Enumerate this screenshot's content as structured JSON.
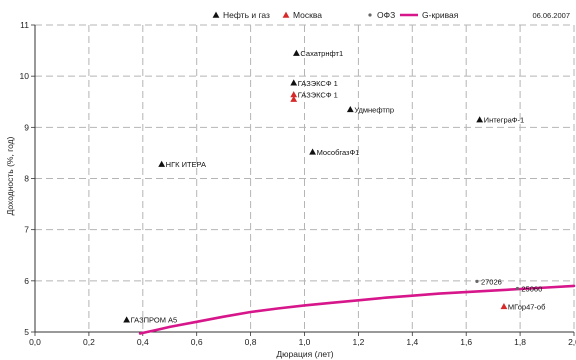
{
  "date_stamp": "06.06.2007",
  "chart_data": {
    "type": "scatter",
    "xlabel": "Дюрация (лет)",
    "ylabel": "Доходность (%, год)",
    "xlim": [
      0,
      2
    ],
    "ylim": [
      5,
      11
    ],
    "x_ticks": [
      "0,0",
      "0,2",
      "0,4",
      "0,6",
      "0,8",
      "1,0",
      "1,2",
      "1,4",
      "1,6",
      "1,8",
      "2,0"
    ],
    "y_ticks": [
      "5",
      "6",
      "7",
      "8",
      "9",
      "10",
      "11"
    ],
    "grid": true,
    "legend_position": "top",
    "legend": [
      {
        "label": "Нефть и газ",
        "marker": "triangle",
        "color": "#111111"
      },
      {
        "label": "Москва",
        "marker": "triangle",
        "color": "#d62a2a"
      },
      {
        "label": "ОФЗ",
        "marker": "dot",
        "color": "#666666"
      },
      {
        "label": "G-кривая",
        "marker": "line",
        "color": "#d6168a"
      }
    ],
    "series": [
      {
        "name": "Нефть и газ",
        "marker": "triangle",
        "color": "#111111",
        "points": [
          {
            "x": 0.97,
            "y": 10.45,
            "label": "Сахатрнфт1"
          },
          {
            "x": 0.96,
            "y": 9.87,
            "label": "ГАЗЭКСФ 1"
          },
          {
            "x": 1.17,
            "y": 9.35,
            "label": "Удмнефтпр"
          },
          {
            "x": 1.65,
            "y": 9.15,
            "label": "ИнтеграФ-1"
          },
          {
            "x": 1.03,
            "y": 8.52,
            "label": "МособгазФ1"
          },
          {
            "x": 0.47,
            "y": 8.28,
            "label": "НГК ИТЕРА"
          },
          {
            "x": 0.34,
            "y": 5.24,
            "label": "ГАЗПРОМ А5"
          }
        ]
      },
      {
        "name": "Москва",
        "marker": "triangle",
        "color": "#d62a2a",
        "points": [
          {
            "x": 0.96,
            "y": 9.64,
            "label": "ГАЗЭКСФ 1"
          },
          {
            "x": 0.96,
            "y": 9.55,
            "label": ""
          },
          {
            "x": 1.74,
            "y": 5.5,
            "label": "МГор47-об"
          }
        ]
      },
      {
        "name": "ОФЗ",
        "marker": "dot",
        "color": "#666666",
        "points": [
          {
            "x": 1.64,
            "y": 5.99,
            "label": "27026"
          },
          {
            "x": 1.79,
            "y": 5.85,
            "label": "25060"
          }
        ]
      },
      {
        "name": "G-кривая",
        "type": "line",
        "color": "#d6168a",
        "x": [
          0.39,
          0.45,
          0.5,
          0.6,
          0.7,
          0.8,
          0.9,
          1.0,
          1.1,
          1.2,
          1.3,
          1.4,
          1.5,
          1.6,
          1.7,
          1.8,
          1.9,
          2.0
        ],
        "y": [
          4.97,
          5.04,
          5.1,
          5.2,
          5.3,
          5.39,
          5.46,
          5.52,
          5.57,
          5.62,
          5.67,
          5.71,
          5.75,
          5.78,
          5.81,
          5.84,
          5.87,
          5.9
        ]
      }
    ]
  }
}
